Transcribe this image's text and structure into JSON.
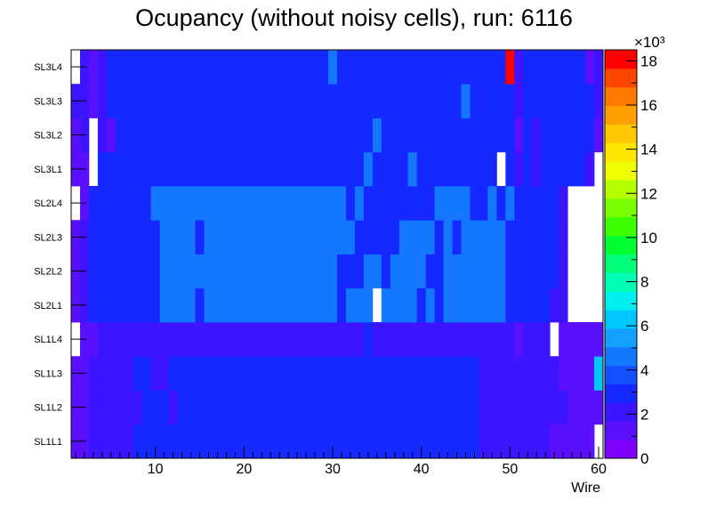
{
  "chart_data": {
    "type": "heatmap",
    "title": "Ocupancy (without noisy cells), run: 6116",
    "xlabel": "Wire",
    "ylabel": "",
    "xlim": [
      0.5,
      60.5
    ],
    "x_ticks": [
      10,
      20,
      30,
      40,
      50,
      60
    ],
    "rows": [
      "SL1L1",
      "SL1L2",
      "SL1L3",
      "SL1L4",
      "SL2L1",
      "SL2L2",
      "SL2L3",
      "SL2L4",
      "SL3L1",
      "SL3L2",
      "SL3L3",
      "SL3L4"
    ],
    "zlim": [
      0,
      18500
    ],
    "z_multiplier": "×10³",
    "z_ticks": [
      0,
      2,
      4,
      6,
      8,
      10,
      12,
      14,
      16,
      18
    ],
    "palette": [
      "#8000ff",
      "#5a0fff",
      "#3c14ff",
      "#1428ff",
      "#1450ff",
      "#1478ff",
      "#14a0ff",
      "#00c8ff",
      "#00f0f0",
      "#00ffb4",
      "#00ff78",
      "#00ff32",
      "#3cff00",
      "#78ff00",
      "#b4ff00",
      "#f0ff00",
      "#ffe600",
      "#ffc800",
      "#ffa000",
      "#ff7800",
      "#ff4600",
      "#ff0000"
    ],
    "cell_values_x1000": {
      "SL1L1": [
        1.5,
        1.5,
        2.3,
        2.3,
        2.3,
        2.3,
        2.3,
        2.8,
        2.8,
        2.8,
        3.3,
        3.3,
        2.8,
        3.3,
        3.3,
        2.8,
        3.3,
        3.3,
        2.8,
        3.3,
        3.3,
        3.3,
        3.3,
        3.3,
        3.3,
        3.3,
        3.3,
        3.3,
        3.3,
        3.3,
        3.3,
        3.3,
        3.3,
        3.3,
        3.3,
        3.3,
        3.3,
        3.3,
        3.3,
        3.3,
        3.3,
        3.3,
        3.3,
        3.3,
        3.3,
        3.3,
        2.3,
        2.3,
        2.3,
        2.3,
        2.3,
        2.3,
        2.3,
        2.3,
        1.5,
        1.5,
        1.5,
        1.5,
        1.5,
        null
      ],
      "SL1L2": [
        1.5,
        1.5,
        2.3,
        2.3,
        2.3,
        2.3,
        2.3,
        2.3,
        3.3,
        3.3,
        3.3,
        2.3,
        3.3,
        3.3,
        3.3,
        3.3,
        3.3,
        3.3,
        3.3,
        3.3,
        3.3,
        3.3,
        3.3,
        3.3,
        3.3,
        3.3,
        3.3,
        3.3,
        3.3,
        3.3,
        3.3,
        3.3,
        3.3,
        3.3,
        3.3,
        3.3,
        3.3,
        3.3,
        3.3,
        3.3,
        3.3,
        3.3,
        3.3,
        3.3,
        3.3,
        3.3,
        2.3,
        2.3,
        2.3,
        2.3,
        2.3,
        2.3,
        2.3,
        2.3,
        2.3,
        2.3,
        1.5,
        1.5,
        1.5,
        1.5
      ],
      "SL1L3": [
        1.5,
        1.5,
        2.3,
        2.3,
        2.3,
        2.3,
        2.3,
        3.3,
        3.3,
        2.3,
        2.3,
        3.3,
        3.3,
        3.3,
        3.3,
        3.3,
        3.3,
        3.3,
        3.3,
        3.3,
        3.3,
        3.3,
        3.3,
        3.3,
        3.3,
        3.3,
        3.3,
        3.3,
        3.3,
        3.3,
        3.3,
        3.3,
        3.3,
        3.3,
        3.3,
        3.3,
        3.3,
        3.3,
        3.3,
        3.3,
        3.3,
        3.3,
        3.3,
        3.3,
        3.3,
        3.3,
        2.3,
        2.3,
        2.3,
        2.3,
        2.3,
        2.3,
        2.3,
        2.3,
        2.3,
        1.5,
        1.5,
        1.5,
        1.5,
        6.0
      ],
      "SL1L4": [
        null,
        1.5,
        1.5,
        2.3,
        2.3,
        2.3,
        2.3,
        2.3,
        2.3,
        2.3,
        2.3,
        2.3,
        2.3,
        2.3,
        2.3,
        2.3,
        2.3,
        2.3,
        2.3,
        2.3,
        2.3,
        2.3,
        2.3,
        2.3,
        2.3,
        2.3,
        2.3,
        2.3,
        2.3,
        2.3,
        2.3,
        2.3,
        2.3,
        3.3,
        2.3,
        2.3,
        2.3,
        2.3,
        2.3,
        2.3,
        2.3,
        2.3,
        2.3,
        2.3,
        2.3,
        2.3,
        2.3,
        2.3,
        2.3,
        2.3,
        1.5,
        2.3,
        2.3,
        2.3,
        null,
        1.5,
        1.5,
        1.5,
        1.5,
        1.5
      ],
      "SL2L1": [
        1.5,
        2.3,
        3.3,
        3.3,
        3.3,
        3.3,
        3.3,
        3.3,
        3.3,
        3.3,
        4.3,
        4.3,
        4.3,
        4.3,
        3.3,
        4.3,
        4.3,
        4.3,
        4.3,
        4.3,
        4.3,
        4.3,
        4.3,
        4.3,
        4.3,
        4.3,
        4.3,
        4.3,
        4.3,
        4.3,
        3.3,
        4.3,
        4.3,
        4.3,
        null,
        4.3,
        4.3,
        4.3,
        4.3,
        3.3,
        4.3,
        3.3,
        4.3,
        4.3,
        4.3,
        4.3,
        4.3,
        4.3,
        4.3,
        3.3,
        3.3,
        3.3,
        3.3,
        3.3,
        2.3,
        2.3,
        null,
        null,
        null,
        null
      ],
      "SL2L2": [
        1.5,
        2.3,
        3.3,
        3.3,
        3.3,
        3.3,
        3.3,
        3.3,
        3.3,
        3.3,
        4.3,
        4.3,
        4.3,
        4.3,
        4.3,
        4.3,
        4.3,
        4.3,
        4.3,
        4.3,
        4.3,
        4.3,
        4.3,
        4.3,
        4.3,
        4.3,
        4.3,
        4.3,
        4.3,
        4.3,
        3.3,
        3.3,
        3.3,
        4.3,
        4.3,
        3.3,
        4.3,
        4.3,
        4.3,
        4.3,
        3.3,
        3.3,
        4.3,
        4.3,
        4.3,
        4.3,
        4.3,
        4.3,
        4.3,
        3.3,
        3.3,
        3.3,
        3.3,
        3.3,
        3.3,
        2.3,
        null,
        null,
        null,
        null
      ],
      "SL2L3": [
        1.5,
        2.3,
        3.3,
        3.3,
        3.3,
        3.3,
        3.3,
        3.3,
        3.3,
        3.3,
        4.3,
        4.3,
        4.3,
        4.3,
        3.3,
        4.3,
        4.3,
        4.3,
        4.3,
        4.3,
        4.3,
        4.3,
        4.3,
        4.3,
        4.3,
        4.3,
        4.3,
        4.3,
        4.3,
        4.3,
        4.3,
        4.3,
        3.3,
        3.3,
        3.3,
        3.3,
        3.3,
        4.3,
        4.3,
        4.3,
        4.3,
        3.3,
        4.3,
        3.3,
        4.3,
        4.3,
        4.3,
        4.3,
        4.3,
        3.3,
        3.3,
        3.3,
        3.3,
        3.3,
        3.3,
        2.3,
        null,
        null,
        null,
        null
      ],
      "SL2L4": [
        null,
        1.5,
        3.3,
        3.3,
        3.3,
        3.3,
        3.3,
        3.3,
        3.3,
        4.3,
        4.3,
        4.3,
        4.3,
        4.3,
        4.3,
        4.3,
        4.3,
        4.3,
        4.3,
        4.3,
        4.3,
        4.3,
        4.3,
        4.3,
        4.3,
        4.3,
        4.3,
        4.3,
        4.3,
        4.3,
        4.3,
        3.3,
        4.3,
        3.3,
        3.3,
        3.3,
        3.3,
        3.3,
        3.3,
        3.3,
        3.3,
        4.3,
        4.3,
        4.3,
        4.3,
        3.3,
        3.3,
        4.3,
        3.3,
        4.3,
        3.3,
        3.3,
        3.3,
        3.3,
        3.3,
        2.3,
        null,
        null,
        null,
        null
      ],
      "SL3L1": [
        1.5,
        1.5,
        null,
        3.3,
        3.3,
        3.3,
        3.3,
        3.3,
        3.3,
        3.3,
        3.3,
        3.3,
        3.3,
        3.3,
        3.3,
        3.3,
        3.3,
        3.3,
        3.3,
        3.3,
        3.3,
        3.3,
        3.3,
        3.3,
        3.3,
        3.3,
        3.3,
        3.3,
        3.3,
        3.3,
        3.3,
        3.3,
        3.3,
        4.3,
        3.3,
        3.3,
        3.3,
        3.3,
        4.3,
        3.3,
        3.3,
        3.3,
        3.3,
        3.3,
        3.3,
        3.3,
        3.3,
        3.3,
        null,
        3.3,
        2.3,
        3.3,
        2.3,
        3.3,
        3.3,
        3.3,
        3.3,
        3.3,
        2.3,
        null
      ],
      "SL3L2": [
        1.5,
        2.3,
        null,
        2.3,
        1.5,
        3.3,
        3.3,
        3.3,
        3.3,
        3.3,
        3.3,
        3.3,
        3.3,
        3.3,
        3.3,
        3.3,
        3.3,
        3.3,
        3.3,
        3.3,
        3.3,
        3.3,
        3.3,
        3.3,
        3.3,
        3.3,
        3.3,
        3.3,
        3.3,
        3.3,
        3.3,
        3.3,
        3.3,
        3.3,
        4.3,
        3.3,
        3.3,
        3.3,
        3.3,
        3.3,
        3.3,
        3.3,
        3.3,
        3.3,
        3.3,
        3.3,
        3.3,
        3.3,
        3.3,
        3.3,
        1.5,
        3.3,
        2.3,
        3.3,
        3.3,
        3.3,
        3.3,
        3.3,
        3.3,
        1.5
      ],
      "SL3L3": [
        2.3,
        2.3,
        1.5,
        2.3,
        3.3,
        3.3,
        3.3,
        3.3,
        3.3,
        3.3,
        3.3,
        3.3,
        3.3,
        3.3,
        3.3,
        3.3,
        3.3,
        3.3,
        3.3,
        3.3,
        3.3,
        3.3,
        3.3,
        3.3,
        3.3,
        3.3,
        3.3,
        3.3,
        3.3,
        3.3,
        3.3,
        3.3,
        3.3,
        3.3,
        3.3,
        3.3,
        3.3,
        3.3,
        3.3,
        3.3,
        3.3,
        3.3,
        3.3,
        3.3,
        4.3,
        3.3,
        3.3,
        3.3,
        3.3,
        3.3,
        2.3,
        3.3,
        3.3,
        3.3,
        3.3,
        3.3,
        3.3,
        3.3,
        3.3,
        2.3
      ],
      "SL3L4": [
        null,
        2.3,
        1.5,
        2.3,
        3.3,
        3.3,
        3.3,
        3.3,
        3.3,
        3.3,
        3.3,
        3.3,
        3.3,
        3.3,
        3.3,
        3.3,
        3.3,
        3.3,
        3.3,
        3.3,
        3.3,
        3.3,
        3.3,
        3.3,
        3.3,
        3.3,
        3.3,
        3.3,
        3.3,
        4.3,
        3.3,
        3.3,
        3.3,
        3.3,
        3.3,
        3.3,
        3.3,
        3.3,
        3.3,
        3.3,
        3.3,
        3.3,
        3.3,
        3.3,
        3.3,
        3.3,
        3.3,
        3.3,
        3.3,
        18.5,
        2.3,
        3.3,
        3.3,
        3.3,
        3.3,
        3.3,
        3.3,
        3.3,
        1.5,
        2.3
      ]
    }
  }
}
